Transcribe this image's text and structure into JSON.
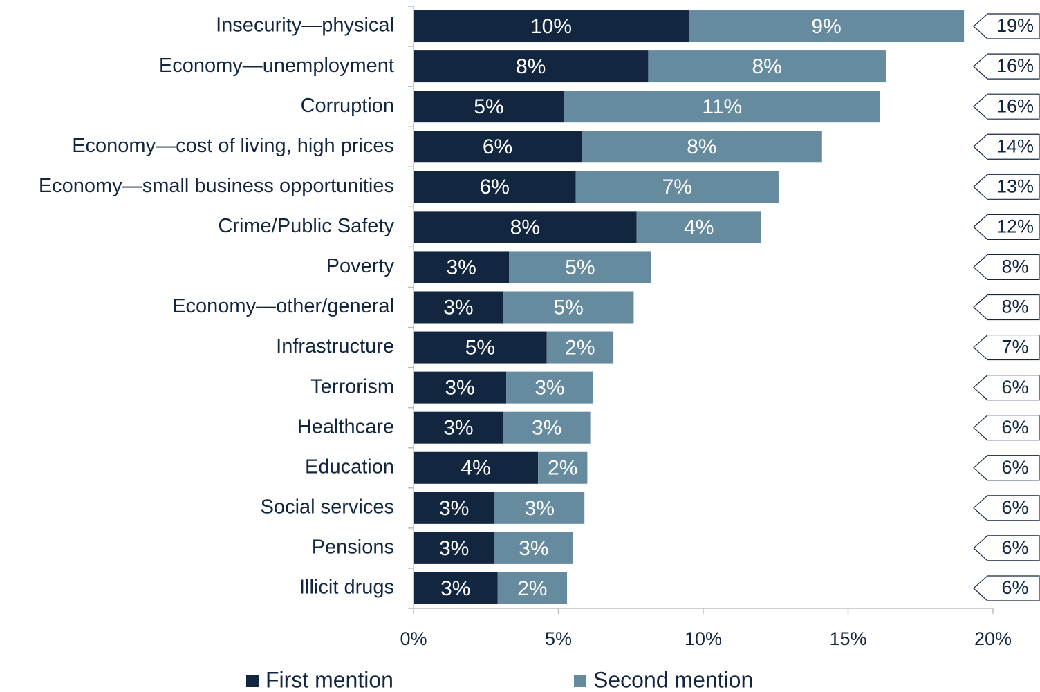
{
  "chart_data": {
    "type": "stacked-bar",
    "categories": [
      "Insecurity—physical",
      "Economy—unemployment",
      "Corruption",
      "Economy—cost of living, high prices",
      "Economy—small business opportunities",
      "Crime/Public Safety",
      "Poverty",
      "Economy—other/general",
      "Infrastructure",
      "Terrorism",
      "Healthcare",
      "Education",
      "Social services",
      "Pensions",
      "Illicit drugs"
    ],
    "series": [
      {
        "name": "First mention",
        "color": "#12263f",
        "values": [
          9.5,
          8.1,
          5.2,
          5.8,
          5.6,
          7.7,
          3.3,
          3.1,
          4.6,
          3.2,
          3.1,
          4.3,
          2.8,
          2.8,
          2.9
        ],
        "value_labels": [
          "10%",
          "8%",
          "5%",
          "6%",
          "6%",
          "8%",
          "3%",
          "3%",
          "5%",
          "3%",
          "3%",
          "4%",
          "3%",
          "3%",
          "3%"
        ]
      },
      {
        "name": "Second mention",
        "color": "#668a9e",
        "values": [
          9.5,
          8.2,
          10.9,
          8.3,
          7.0,
          4.3,
          4.9,
          4.5,
          2.3,
          3.0,
          3.0,
          1.7,
          3.1,
          2.7,
          2.4
        ],
        "value_labels": [
          "9%",
          "8%",
          "11%",
          "8%",
          "7%",
          "4%",
          "5%",
          "5%",
          "2%",
          "3%",
          "3%",
          "2%",
          "3%",
          "3%",
          "2%"
        ]
      }
    ],
    "totals": {
      "values": [
        19,
        16,
        16,
        14,
        13,
        12,
        8,
        8,
        7,
        6,
        6,
        6,
        6,
        6,
        6
      ],
      "value_labels": [
        "19%",
        "16%",
        "16%",
        "14%",
        "13%",
        "12%",
        "8%",
        "8%",
        "7%",
        "6%",
        "6%",
        "6%",
        "6%",
        "6%",
        "6%"
      ]
    },
    "xlim": [
      0,
      20
    ],
    "xticks": [
      {
        "value": 0,
        "label": "0%"
      },
      {
        "value": 5,
        "label": "5%"
      },
      {
        "value": 10,
        "label": "10%"
      },
      {
        "value": 15,
        "label": "15%"
      },
      {
        "value": 20,
        "label": "20%"
      }
    ],
    "grid": false
  }
}
